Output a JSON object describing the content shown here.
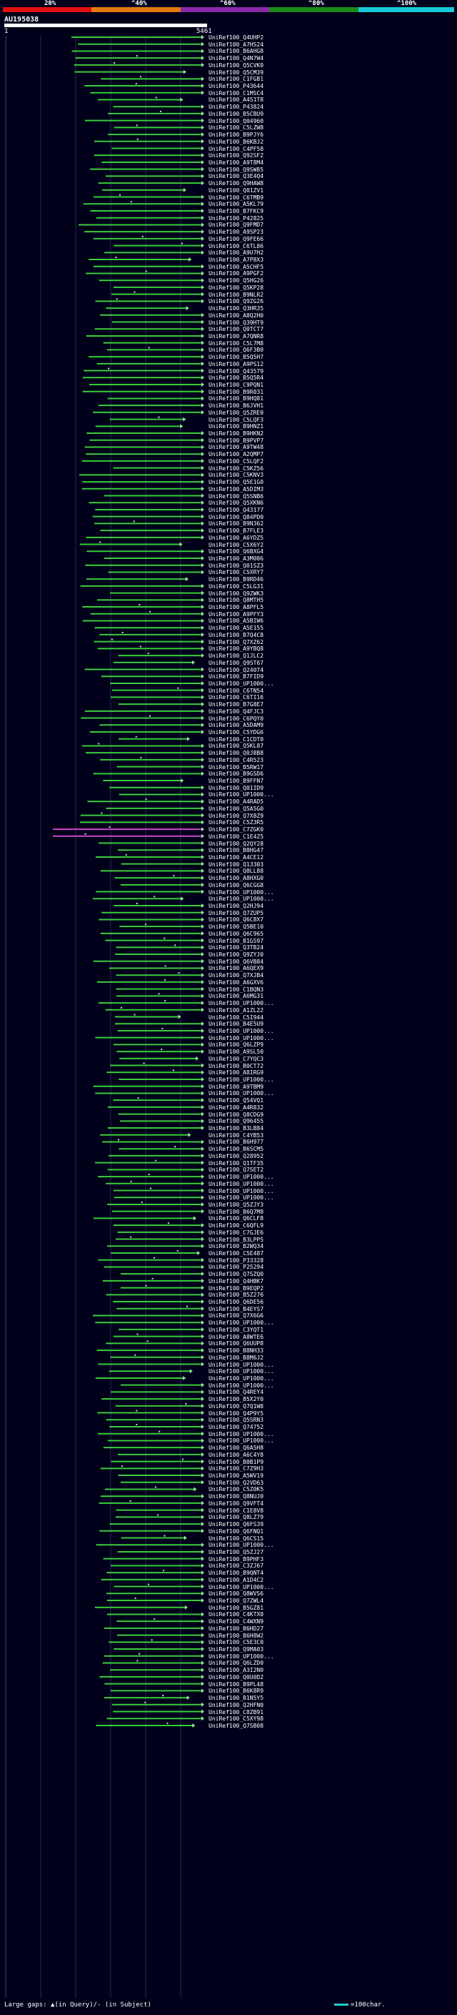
{
  "scale": {
    "ticks": [
      "20%",
      "^40%",
      "^60%",
      "^80%",
      "^100%"
    ],
    "colors": [
      "#e01010",
      "#e07a10",
      "#8a2aa8",
      "#1a8a1a",
      "#18c8d8"
    ]
  },
  "query": {
    "id": "AU195038",
    "start": "1",
    "end": "5461"
  },
  "colors": {
    "hit": "#3ccc3c",
    "hit_alt": "#cc44cc",
    "hit_edge": "#b8f0b8",
    "grid": "#2a2a55",
    "end": "#9be39b"
  },
  "hits": [
    "UniRef100_Q4UHP2",
    "UniRef100_A7HS24",
    "UniRef100_B6AHG8",
    "UniRef100_Q4N7W4",
    "UniRef100_Q5CVK0",
    "UniRef100_Q5CM39",
    "UniRef100_C1FGB1",
    "UniRef100_P43644",
    "UniRef100_C1MSC4",
    "UniRef100_A4S1T8",
    "UniRef100_P43824",
    "UniRef100_B5CBU9",
    "UniRef100_Q04960",
    "UniRef100_C5LZW8",
    "UniRef100_B9PJY6",
    "UniRef100_B6KBJ2",
    "UniRef100_C4PF58",
    "UniRef100_Q92SF2",
    "UniRef100_A9T8M4",
    "UniRef100_Q9SW85",
    "UniRef100_Q3E4Q4",
    "UniRef100_Q9HAW8",
    "UniRef100_Q01ZV1",
    "UniRef100_C6TMB9",
    "UniRef100_A5KL79",
    "UniRef100_B7FKC9",
    "UniRef100_P42825",
    "UniRef100_Q9FMD7",
    "UniRef100_A9SP23",
    "UniRef100_Q9FE66",
    "UniRef100_C6TL86",
    "UniRef100_A9U7H2",
    "UniRef100_A7P8X3",
    "UniRef100_A5CHF5",
    "UniRef100_A9PGF2",
    "UniRef100_Q5HG26",
    "UniRef100_Q5KP28",
    "UniRef100_B9NLR2",
    "UniRef100_Q9ZG26",
    "UniRef100_Q3HR35",
    "UniRef100_A8Q2H0",
    "UniRef100_Q39HT9",
    "UniRef100_Q0TCT7",
    "UniRef100_A7QNR8",
    "UniRef100_C5L7M8",
    "UniRef100_Q6F3B0",
    "UniRef100_B5Q5H7",
    "UniRef100_A9PS12",
    "UniRef100_Q43579",
    "UniRef100_B5Q5R4",
    "UniRef100_C9PQN1",
    "UniRef100_B9R031",
    "UniRef100_B9HQ81",
    "UniRef100_B6JVH1",
    "UniRef100_Q5ZRE0",
    "UniRef100_C5LQF3",
    "UniRef100_B9HNZ1",
    "UniRef100_B9HKN2",
    "UniRef100_B9PVP7",
    "UniRef100_A9TW48",
    "UniRef100_A2QMP7",
    "UniRef100_C5LQF2",
    "UniRef100_C5KZ56",
    "UniRef100_C5KNV3",
    "UniRef100_Q5E1G0",
    "UniRef100_A5DIM3",
    "UniRef100_Q5SNB6",
    "UniRef100_Q5XKN6",
    "UniRef100_Q43177",
    "UniRef100_Q84PD0",
    "UniRef100_B9N362",
    "UniRef100_B7FLE3",
    "UniRef100_A6YDZ5",
    "UniRef100_C5X6Y2",
    "UniRef100_Q6BXG4",
    "UniRef100_A3M086",
    "UniRef100_Q01SZ3",
    "UniRef100_C5XRY7",
    "UniRef100_B9RD46",
    "UniRef100_C5LG31",
    "UniRef100_Q9ZWK3",
    "UniRef100_Q8MTH5",
    "UniRef100_A8PFL5",
    "UniRef100_A9PFY3",
    "UniRef100_A5BIW6",
    "UniRef100_A5E155",
    "UniRef100_B7Q4C8",
    "UniRef100_Q7XZ62",
    "UniRef100_A9YBQ8",
    "UniRef100_Q1JLC2",
    "UniRef100_Q9ST67",
    "UniRef100_Q24074",
    "UniRef100_B7FID9",
    "UniRef100_UP1000...",
    "UniRef100_C6TN54",
    "UniRef100_C6TI16",
    "UniRef100_B7G8E7",
    "UniRef100_Q4FJC3",
    "UniRef100_C6PQY0",
    "UniRef100_A5DAM9",
    "UniRef100_C5YDG6",
    "UniRef100_C1CDT0",
    "UniRef100_Q5KL87",
    "UniRef100_Q0J8B8",
    "UniRef100_C4R523",
    "UniRef100_B5RW17",
    "UniRef100_B9GSD6",
    "UniRef100_B9FFN7",
    "UniRef100_Q01ID9",
    "UniRef100_UP1000...",
    "UniRef100_A4RAD5",
    "UniRef100_Q5A5G0",
    "UniRef100_Q7X8Z9",
    "UniRef100_C5Z3R5",
    "UniRef100_C7ZGK0",
    "UniRef100_C1E4Z5",
    "UniRef100_Q2QY28",
    "UniRef100_B8HG47",
    "UniRef100_A4CE12",
    "UniRef100_Q13303",
    "UniRef100_Q8LL88",
    "UniRef100_A8HXG0",
    "UniRef100_Q6CGG8",
    "UniRef100_UP1000...",
    "UniRef100_UP1000...",
    "UniRef100_Q2HJ94",
    "UniRef100_Q7ZUP5",
    "UniRef100_Q6C8X7",
    "UniRef100_Q5BE10",
    "UniRef100_Q6C965",
    "UniRef100_B1GS97",
    "UniRef100_Q3TB24",
    "UniRef100_Q9ZYJ0",
    "UniRef100_Q6VB84",
    "UniRef100_A6QEX9",
    "UniRef100_Q7XJB4",
    "UniRef100_A6GXV6",
    "UniRef100_C1BQN3",
    "UniRef100_A6MG31",
    "UniRef100_UP1000...",
    "UniRef100_A1ZL22",
    "UniRef100_C5I944",
    "UniRef100_B4E5U9",
    "UniRef100_UP1000...",
    "UniRef100_UP1000...",
    "UniRef100_Q6LZP9",
    "UniRef100_A9SL50",
    "UniRef100_C7YQC3",
    "UniRef100_B0CT72",
    "UniRef100_A8IRG9",
    "UniRef100_UP1000...",
    "UniRef100_A9TBM9",
    "UniRef100_UP1000...",
    "UniRef100_Q54VQ1",
    "UniRef100_A4R832",
    "UniRef100_Q8CDG9",
    "UniRef100_Q96455",
    "UniRef100_B3LB84",
    "UniRef100_C4YB53",
    "UniRef100_B6H977",
    "UniRef100_B6SCM5",
    "UniRef100_Q28952",
    "UniRef100_Q1TF35",
    "UniRef100_Q7SET2",
    "UniRef100_UP1000...",
    "UniRef100_UP1000...",
    "UniRef100_UP1000...",
    "UniRef100_UP1000...",
    "UniRef100_Q5ZJY3",
    "UniRef100_B6Q7M8",
    "UniRef100_Q6CLF8",
    "UniRef100_C6QFL9",
    "UniRef100_C7GJE6",
    "UniRef100_B3LPP5",
    "UniRef100_B2WQ34",
    "UniRef100_C5E487",
    "UniRef100_P33328",
    "UniRef100_P25294",
    "UniRef100_Q7SZQ0",
    "UniRef100_Q4HBK7",
    "UniRef100_B9EQP2",
    "UniRef100_B5Z276",
    "UniRef100_Q6DE56",
    "UniRef100_B4EYS7",
    "UniRef100_Q7X6G6",
    "UniRef100_UP1000...",
    "UniRef100_C3YQT1",
    "UniRef100_A8WTE6",
    "UniRef100_Q6UUP8",
    "UniRef100_B8NH33",
    "UniRef100_B8M6J2",
    "UniRef100_UP1000...",
    "UniRef100_UP1000...",
    "UniRef100_UP1000...",
    "UniRef100_UP1000...",
    "UniRef100_Q4REY4",
    "UniRef100_B5X2Y0",
    "UniRef100_Q7Q1W8",
    "UniRef100_Q4P9Y5",
    "UniRef100_Q5SRN3",
    "UniRef100_Q74752",
    "UniRef100_UP1000...",
    "UniRef100_UP1000...",
    "UniRef100_Q6A5H8",
    "UniRef100_A6C4Y8",
    "UniRef100_B8B1P9",
    "UniRef100_C7Z9H3",
    "UniRef100_A5WV19",
    "UniRef100_Q2VD63",
    "UniRef100_C5Z0K5",
    "UniRef100_Q8NUJ0",
    "UniRef100_Q9VFT4",
    "UniRef100_C1E8V8",
    "UniRef100_Q8LZ79",
    "UniRef100_Q6FS39",
    "UniRef100_Q6FNQ1",
    "UniRef100_Q6CS15",
    "UniRef100_UP1000...",
    "UniRef100_Q5ZJ27",
    "UniRef100_B9PHF3",
    "UniRef100_C3ZJ67",
    "UniRef100_B9QNT4",
    "UniRef100_A1D4C2",
    "UniRef100_UP1000...",
    "UniRef100_Q8WVS6",
    "UniRef100_Q7ZWL4",
    "UniRef100_B5GZ81",
    "UniRef100_C4KTX0",
    "UniRef100_C4WXN9",
    "UniRef100_B6HD27",
    "UniRef100_B6H8W2",
    "UniRef100_C5E3C0",
    "UniRef100_Q9MA03",
    "UniRef100_UP1000...",
    "UniRef100_Q6LZD0",
    "UniRef100_A3I2N0",
    "UniRef100_Q0U0D2",
    "UniRef100_B9PL48",
    "UniRef100_B6K8R9",
    "UniRef100_B1N5Y5",
    "UniRef100_Q2HFN0",
    "UniRef100_C8ZB91",
    "UniRef100_C5XY98",
    "UniRef100_Q7SB08"
  ],
  "legend": {
    "left": "Large gaps: ▲(in Query)/- (in Subject)",
    "right": "=100char."
  }
}
